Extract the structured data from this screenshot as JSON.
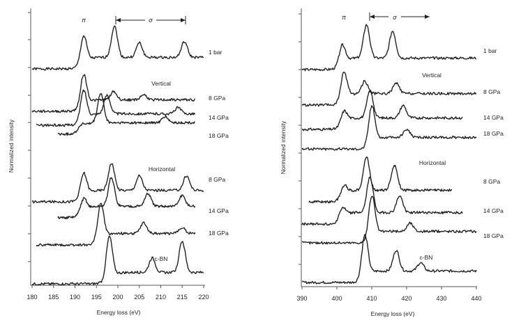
{
  "chart_data": [
    {
      "type": "line",
      "title": "",
      "xlabel": "Energy loss (eV)",
      "ylabel": "Normalized intensity",
      "xlim": [
        180,
        220
      ],
      "x_ticks": [
        "180",
        "185",
        "190",
        "195",
        "200",
        "205",
        "210",
        "215",
        "220"
      ],
      "annotations": [
        "π",
        "σ"
      ],
      "group_labels": [
        "Vertical",
        "Horizontal"
      ],
      "series": [
        {
          "name": "1 bar",
          "peaks": [
            {
              "x": 192.0,
              "height": 1.3
            },
            {
              "x": 199.2,
              "height": 1.5
            },
            {
              "x": 205.0,
              "height": 0.7
            },
            {
              "x": 215.5,
              "height": 0.75
            }
          ]
        },
        {
          "name": "Vertical 8 GPa",
          "peaks": [
            {
              "x": 192.0,
              "height": 1.5
            },
            {
              "x": 199.0,
              "height": 0.4
            },
            {
              "x": 206.0,
              "height": 0.25
            }
          ]
        },
        {
          "name": "Vertical 14 GPa",
          "peaks": [
            {
              "x": 192.0,
              "height": 1.4
            },
            {
              "x": 197.5,
              "height": 0.9
            },
            {
              "x": 214.0,
              "height": 0.3
            }
          ]
        },
        {
          "name": "Vertical 18 GPa",
          "peaks": [
            {
              "x": 191.5,
              "height": 0.2
            },
            {
              "x": 196.0,
              "height": 1.4
            },
            {
              "x": 211.0,
              "height": 0.3
            }
          ]
        },
        {
          "name": "Horizontal 8 GPa",
          "peaks": [
            {
              "x": 192.0,
              "height": 1.1
            },
            {
              "x": 198.5,
              "height": 1.3
            },
            {
              "x": 205.0,
              "height": 0.7
            },
            {
              "x": 216.0,
              "height": 0.7
            }
          ]
        },
        {
          "name": "Horizontal 14 GPa",
          "peaks": [
            {
              "x": 192.0,
              "height": 0.65
            },
            {
              "x": 198.5,
              "height": 1.4
            },
            {
              "x": 207.0,
              "height": 0.6
            },
            {
              "x": 215.0,
              "height": 0.5
            }
          ]
        },
        {
          "name": "Horizontal 18 GPa",
          "peaks": [
            {
              "x": 196.0,
              "height": 1.7
            },
            {
              "x": 206.0,
              "height": 0.5
            },
            {
              "x": 215.0,
              "height": 0.3
            }
          ]
        },
        {
          "name": "c-BN",
          "peaks": [
            {
              "x": 198.0,
              "height": 2.0
            },
            {
              "x": 208.0,
              "height": 0.7
            },
            {
              "x": 215.0,
              "height": 1.5
            }
          ]
        }
      ]
    },
    {
      "type": "line",
      "title": "",
      "xlabel": "Energy loss (eV)",
      "ylabel": "Normalized intensity",
      "xlim": [
        390,
        440
      ],
      "x_ticks": [
        "390",
        "400",
        "410",
        "420",
        "430",
        "440"
      ],
      "annotations": [
        "π",
        "σ"
      ],
      "group_labels": [
        "Vertical",
        "Horizontal"
      ],
      "series": [
        {
          "name": "1 bar",
          "peaks": [
            {
              "x": 401.5,
              "height": 0.9
            },
            {
              "x": 408.5,
              "height": 1.6
            },
            {
              "x": 416.0,
              "height": 1.3
            }
          ]
        },
        {
          "name": "Vertical 8 GPa",
          "peaks": [
            {
              "x": 402.0,
              "height": 1.3
            },
            {
              "x": 408.0,
              "height": 0.6
            },
            {
              "x": 417.0,
              "height": 0.5
            }
          ]
        },
        {
          "name": "Vertical 14 GPa",
          "peaks": [
            {
              "x": 402.0,
              "height": 0.6
            },
            {
              "x": 409.5,
              "height": 1.3
            },
            {
              "x": 419.0,
              "height": 0.6
            }
          ]
        },
        {
          "name": "Vertical 18 GPa",
          "peaks": [
            {
              "x": 410.0,
              "height": 1.8
            },
            {
              "x": 420.0,
              "height": 0.4
            }
          ]
        },
        {
          "name": "Horizontal 8 GPa",
          "peaks": [
            {
              "x": 402.0,
              "height": 0.5
            },
            {
              "x": 408.5,
              "height": 1.6
            },
            {
              "x": 416.5,
              "height": 1.2
            }
          ]
        },
        {
          "name": "Horizontal 14 GPa",
          "peaks": [
            {
              "x": 401.5,
              "height": 0.5
            },
            {
              "x": 409.5,
              "height": 1.7
            },
            {
              "x": 418.0,
              "height": 0.8
            }
          ]
        },
        {
          "name": "Horizontal 18 GPa",
          "peaks": [
            {
              "x": 410.0,
              "height": 2.0
            },
            {
              "x": 421.0,
              "height": 0.4
            }
          ]
        },
        {
          "name": "c-BN",
          "peaks": [
            {
              "x": 408.0,
              "height": 2.0
            },
            {
              "x": 417.0,
              "height": 1.0
            },
            {
              "x": 424.0,
              "height": 0.4
            }
          ]
        }
      ]
    }
  ],
  "labels": {
    "left": {
      "pi": "π",
      "sigma": "σ",
      "vertical": "Vertical",
      "horizontal": "Horizontal",
      "curves": [
        "1 bar",
        "8 GPa",
        "14 GPa",
        "18 GPa",
        "8 GPa",
        "14 GPa",
        "18 GPa",
        "c-BN"
      ],
      "x_ticks": [
        "180",
        "185",
        "190",
        "195",
        "200",
        "205",
        "210",
        "215",
        "220"
      ],
      "xlabel": "Energy loss (eV)",
      "ylabel": "Normalized intensity"
    },
    "right": {
      "pi": "π",
      "sigma": "σ",
      "vertical": "Vertical",
      "horizontal": "Horizontal",
      "curves": [
        "1 bar",
        "8 GPa",
        "14 GPa",
        "18 GPa",
        "8 GPa",
        "14 GPa",
        "18 GPa",
        "c-BN"
      ],
      "x_ticks": [
        "390",
        "400",
        "410",
        "420",
        "430",
        "440"
      ],
      "xlabel": "Energy loss (eV)",
      "ylabel": "Normalized intensity"
    }
  }
}
